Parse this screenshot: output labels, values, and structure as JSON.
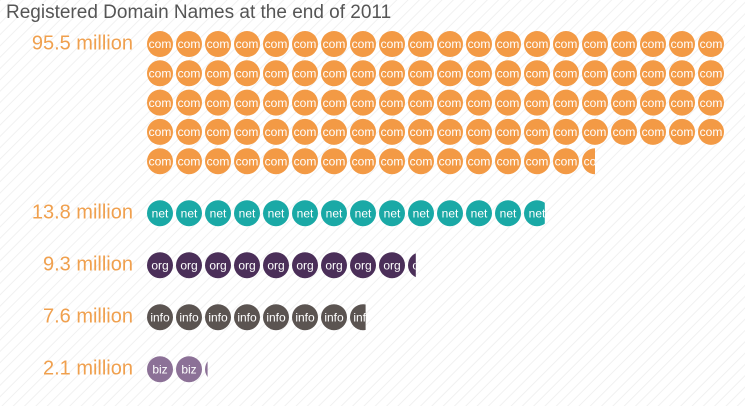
{
  "chart_data": {
    "type": "pictogram",
    "title": "Registered Domain Names at the end of 2011",
    "categories": [
      "com",
      "net",
      "org",
      "info",
      "biz"
    ],
    "values": [
      95.5,
      13.8,
      9.3,
      7.6,
      2.1
    ],
    "value_labels": [
      "95.5 million",
      "13.8 million",
      "9.3 million",
      "7.6 million",
      "2.1 million"
    ],
    "colors": [
      "#f39a45",
      "#1aa9a6",
      "#4b2f59",
      "#5b5451",
      "#8c7197"
    ]
  }
}
